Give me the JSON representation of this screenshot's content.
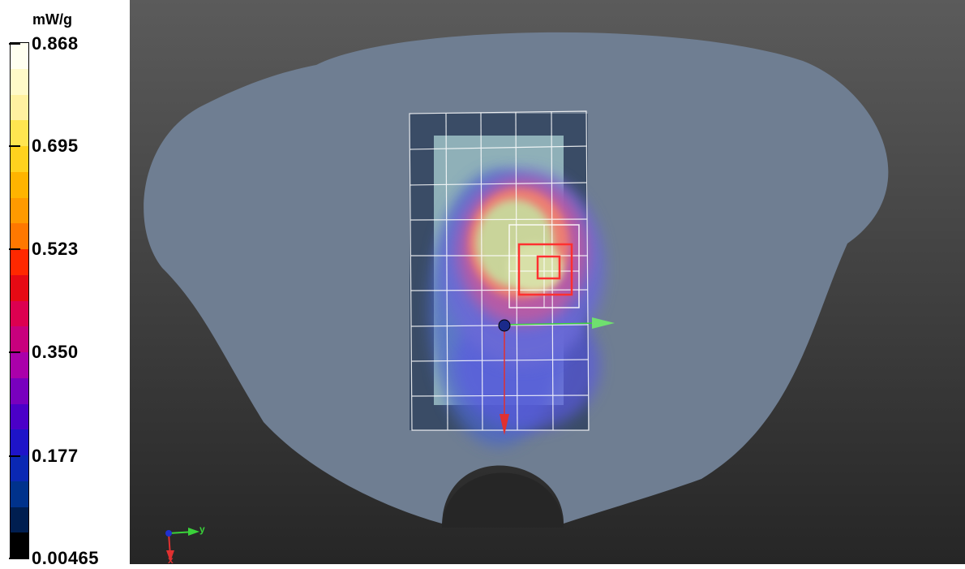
{
  "legend": {
    "unit": "mW/g",
    "ticks": [
      {
        "label": "0.868",
        "value": 0.868
      },
      {
        "label": "0.695",
        "value": 0.695
      },
      {
        "label": "0.523",
        "value": 0.523
      },
      {
        "label": "0.350",
        "value": 0.35
      },
      {
        "label": "0.177",
        "value": 0.177
      },
      {
        "label": "0.00465",
        "value": 0.00465
      }
    ],
    "colors": [
      "#fffff0",
      "#fffac8",
      "#fff1a0",
      "#ffe550",
      "#ffd21e",
      "#ffb400",
      "#ff9a00",
      "#ff7800",
      "#ff2800",
      "#e60a14",
      "#dc0050",
      "#c8007d",
      "#aa00aa",
      "#7800be",
      "#4b00c8",
      "#1e14c8",
      "#0a28b4",
      "#00328c",
      "#001e50",
      "#000000"
    ]
  },
  "viewport": {
    "colors": {
      "phantom": "#6f7e92",
      "background_top": "#5b5b5b",
      "background_bottom": "#262626",
      "grid": "#ffffff",
      "zoom_scan_inner": "#ff3030",
      "axis_x": "#e03030",
      "axis_y": "#3ad13a",
      "axis_z": "#2030d0"
    },
    "triad": {
      "y_label": "y",
      "x_label": "x"
    }
  }
}
